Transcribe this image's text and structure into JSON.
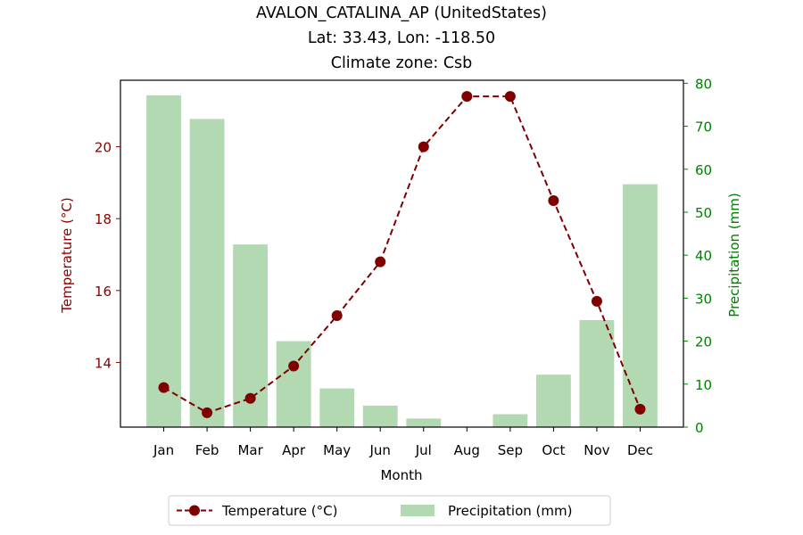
{
  "chart_data": {
    "type": "bar+line",
    "title_lines": [
      "AVALON_CATALINA_AP (UnitedStates)",
      "Lat: 33.43, Lon: -118.50",
      "Climate zone: Csb"
    ],
    "categories": [
      "Jan",
      "Feb",
      "Mar",
      "Apr",
      "May",
      "Jun",
      "Jul",
      "Aug",
      "Sep",
      "Oct",
      "Nov",
      "Dec"
    ],
    "xlabel": "Month",
    "ylabel_left": "Temperature (°C)",
    "ylabel_right": "Precipitation (mm)",
    "y_left_ticks": [
      14,
      16,
      18,
      20
    ],
    "y_right_ticks": [
      0,
      10,
      20,
      30,
      40,
      50,
      60,
      70,
      80
    ],
    "ylim_left": [
      12.2,
      21.85
    ],
    "ylim_right": [
      0,
      80.7
    ],
    "series": [
      {
        "name": "Temperature (°C)",
        "kind": "line",
        "axis": "left",
        "color": "#800000",
        "linestyle": "dashed",
        "marker": "circle",
        "values": [
          13.3,
          12.6,
          13.0,
          13.9,
          15.3,
          16.8,
          20.0,
          21.4,
          21.4,
          18.5,
          15.7,
          12.7
        ]
      },
      {
        "name": "Precipitation (mm)",
        "kind": "bar",
        "axis": "right",
        "color": "#b2d9b2",
        "values": [
          77.2,
          71.7,
          42.5,
          20.0,
          9.0,
          5.0,
          2.0,
          0.0,
          3.0,
          12.2,
          24.9,
          56.5
        ]
      }
    ],
    "legend_placement": "bottom-center",
    "grid": false,
    "left_axis_color": "#8b0000",
    "right_axis_color": "#008000"
  }
}
